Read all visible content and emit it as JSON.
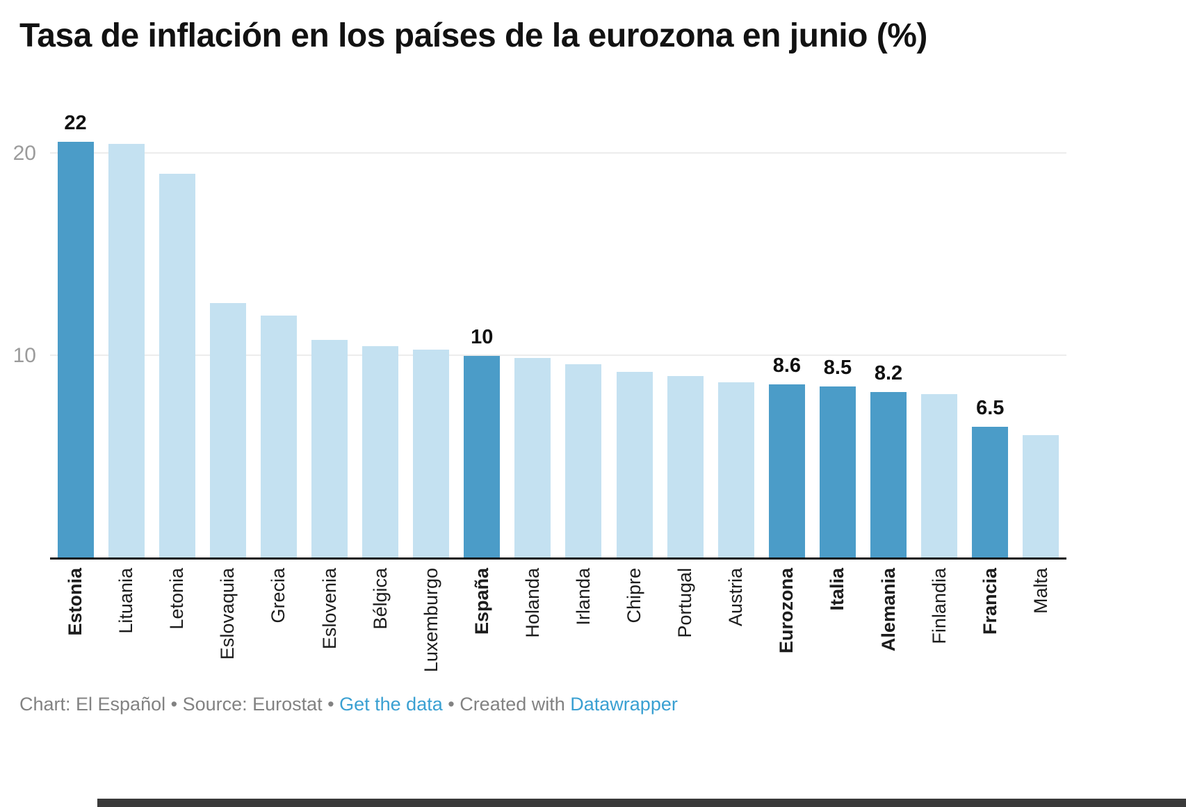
{
  "title": "Tasa de inflación en los países de la eurozona en junio (%)",
  "colors": {
    "highlight": "#4b9cc8",
    "base": "#c4e1f1",
    "baseline": "#111111",
    "gridline": "#ececec",
    "link": "#3aa0d2",
    "footer_text": "#828282",
    "ytick_text": "#9b9b9b"
  },
  "chart_data": {
    "type": "bar",
    "title": "Tasa de inflación en los países de la eurozona en junio (%)",
    "xlabel": "",
    "ylabel": "",
    "ylim": [
      0,
      22
    ],
    "yticks": [
      10,
      20
    ],
    "grid": "horizontal gridlines at yticks",
    "legend": "none",
    "categories": [
      "Estonia",
      "Lituania",
      "Letonia",
      "Eslovaquia",
      "Grecia",
      "Eslovenia",
      "Bélgica",
      "Luxemburgo",
      "España",
      "Holanda",
      "Irlanda",
      "Chipre",
      "Portugal",
      "Austria",
      "Eurozona",
      "Italia",
      "Alemania",
      "Finlandia",
      "Francia",
      "Malta"
    ],
    "values": [
      22,
      20.5,
      19,
      12.6,
      12,
      10.8,
      10.5,
      10.3,
      10,
      9.9,
      9.6,
      9.2,
      9.0,
      8.7,
      8.6,
      8.5,
      8.2,
      8.1,
      6.5,
      6.1
    ],
    "highlighted": [
      true,
      false,
      false,
      false,
      false,
      false,
      false,
      false,
      true,
      false,
      false,
      false,
      false,
      false,
      true,
      true,
      true,
      false,
      true,
      false
    ],
    "value_labels": {
      "Estonia": "22",
      "España": "10",
      "Eurozona": "8.6",
      "Italia": "8.5",
      "Alemania": "8.2",
      "Francia": "6.5"
    }
  },
  "footer": {
    "credits_prefix": "Chart: El Español • Source: Eurostat • ",
    "link_get_data": "Get the data",
    "created_with": " • Created with ",
    "link_datawrapper": "Datawrapper"
  }
}
